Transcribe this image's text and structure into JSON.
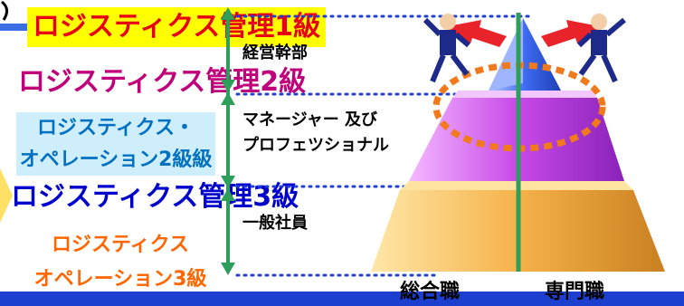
{
  "levels": {
    "logistics_mgmt_1": "ロジスティクス管理1級",
    "logistics_mgmt_2": "ロジスティクス管理2級",
    "logistics_ops_2_line1": "ロジスティクス・",
    "logistics_ops_2_line2": "オペレーション2級級",
    "logistics_mgmt_3": "ロジスティクス管理3級",
    "logistics_ops_3_line1": "ロジスティクス",
    "logistics_ops_3_line2": "オペレーション3級"
  },
  "tiers": {
    "executive": "経営幹部",
    "manager_line1": "マネージャー 及び",
    "manager_line2": "プロフェツショナル",
    "staff": "一般社員"
  },
  "base_labels": {
    "generalist": "総合職",
    "specialist": "専門職"
  },
  "colors": {
    "accent_green": "#2e9e5b",
    "divider_blue": "#1f3fd9",
    "bottom_bar": "#1d3fcf"
  }
}
